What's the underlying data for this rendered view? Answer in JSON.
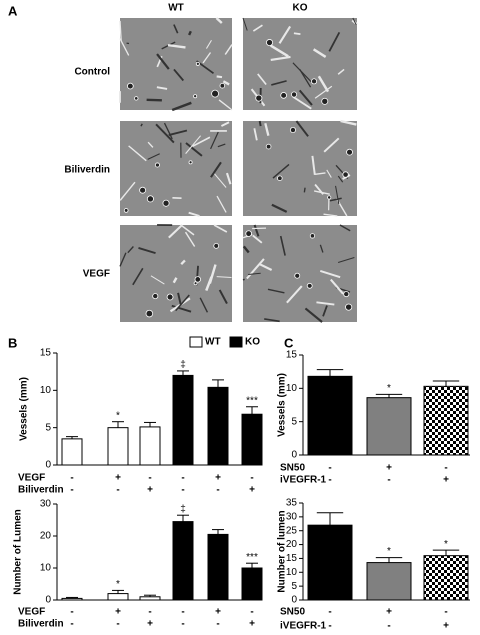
{
  "panel_a": {
    "letter": "A",
    "columns": [
      "WT",
      "KO"
    ],
    "rows": [
      "Control",
      "Biliverdin",
      "VEGF"
    ]
  },
  "panel_b": {
    "letter": "B"
  },
  "panel_c": {
    "letter": "C"
  },
  "chart_data": [
    {
      "type": "bar",
      "ylabel": "Vessels (mm)",
      "categories": [
        null,
        null,
        null,
        null,
        null,
        null
      ],
      "values": [
        3.5,
        5.0,
        5.1,
        12.0,
        10.4,
        6.8
      ],
      "errors": [
        0.3,
        0.8,
        0.6,
        0.6,
        1.0,
        1.0
      ],
      "colors": [
        "#ffffff",
        "#ffffff",
        "#ffffff",
        "#000000",
        "#000000",
        "#000000"
      ],
      "checker": [
        false,
        false,
        false,
        false,
        false,
        false
      ],
      "annotations": [
        null,
        "*",
        null,
        "‡",
        null,
        "***"
      ],
      "conditions": [
        {
          "label": "VEGF",
          "values": [
            "-",
            "+",
            "-",
            "-",
            "+",
            "-"
          ]
        },
        {
          "label": "Biliverdin",
          "values": [
            "-",
            "-",
            "+",
            "-",
            "-",
            "+"
          ]
        }
      ],
      "legend": [
        {
          "name": "WT",
          "color": "#ffffff"
        },
        {
          "name": "KO",
          "color": "#000000"
        }
      ],
      "ylim": [
        0,
        15
      ],
      "yticks": [
        0,
        5,
        10,
        15
      ]
    },
    {
      "type": "bar",
      "ylabel": "Number of Lumen",
      "categories": [
        null,
        null,
        null,
        null,
        null,
        null
      ],
      "values": [
        0.5,
        2,
        1,
        24.5,
        20.5,
        10
      ],
      "errors": [
        0.3,
        1,
        0.5,
        2,
        1.5,
        1.5
      ],
      "colors": [
        "#ffffff",
        "#ffffff",
        "#ffffff",
        "#000000",
        "#000000",
        "#000000"
      ],
      "checker": [
        false,
        false,
        false,
        false,
        false,
        false
      ],
      "annotations": [
        null,
        "*",
        null,
        "‡",
        null,
        "***"
      ],
      "conditions": [
        {
          "label": "VEGF",
          "values": [
            "-",
            "+",
            "-",
            "-",
            "+",
            "-"
          ]
        },
        {
          "label": "Biliverdin",
          "values": [
            "-",
            "-",
            "+",
            "-",
            "-",
            "+"
          ]
        }
      ],
      "ylim": [
        0,
        30
      ],
      "yticks": [
        0,
        10,
        20,
        30
      ]
    },
    {
      "type": "bar",
      "ylabel": "Vessels (mm)",
      "categories": [
        null,
        null,
        null
      ],
      "values": [
        11.8,
        8.6,
        10.3
      ],
      "errors": [
        1.0,
        0.5,
        0.8
      ],
      "colors": [
        "#000000",
        "#808080",
        "#000000"
      ],
      "checker": [
        false,
        false,
        true
      ],
      "annotations": [
        null,
        "*",
        null
      ],
      "conditions": [
        {
          "label": "SN50",
          "values": [
            "-",
            "+",
            "-"
          ]
        },
        {
          "label": "iVEGFR-1",
          "values": [
            "-",
            "-",
            "+"
          ]
        }
      ],
      "ylim": [
        0,
        15
      ],
      "yticks": [
        0,
        5,
        10,
        15
      ]
    },
    {
      "type": "bar",
      "ylabel": "Number of lumen",
      "categories": [
        null,
        null,
        null
      ],
      "values": [
        27,
        13.5,
        16
      ],
      "errors": [
        4.5,
        1.8,
        2
      ],
      "colors": [
        "#000000",
        "#808080",
        "#000000"
      ],
      "checker": [
        false,
        false,
        true
      ],
      "annotations": [
        null,
        "*",
        "*"
      ],
      "conditions": [
        {
          "label": "SN50",
          "values": [
            "-",
            "+",
            "-"
          ]
        },
        {
          "label": "iVEGFR-1",
          "values": [
            "-",
            "-",
            "+"
          ]
        }
      ],
      "ylim": [
        0,
        35
      ],
      "yticks": [
        0,
        5,
        10,
        15,
        20,
        25,
        30,
        35
      ]
    }
  ]
}
